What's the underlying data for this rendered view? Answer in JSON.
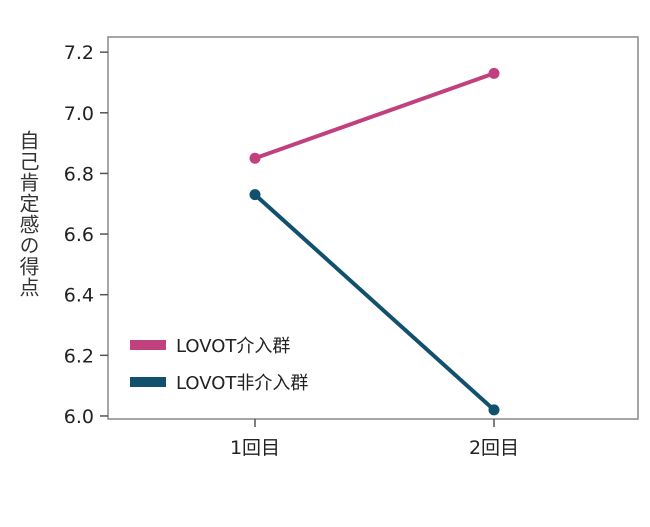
{
  "chart_data": {
    "type": "line",
    "title": "",
    "xlabel": "",
    "ylabel": "自己肯定感の得点",
    "categories": [
      "1回目",
      "2回目"
    ],
    "ylim": [
      5.99,
      7.25
    ],
    "yticks": [
      "6.0",
      "6.2",
      "6.4",
      "6.6",
      "6.8",
      "7.0",
      "7.2"
    ],
    "grid": false,
    "legend_position": "lower-left",
    "series": [
      {
        "name": "LOVOT介入群",
        "values": [
          6.85,
          7.13
        ],
        "color": "#c0417e"
      },
      {
        "name": "LOVOT非介入群",
        "values": [
          6.73,
          6.02
        ],
        "color": "#12516e"
      }
    ]
  }
}
